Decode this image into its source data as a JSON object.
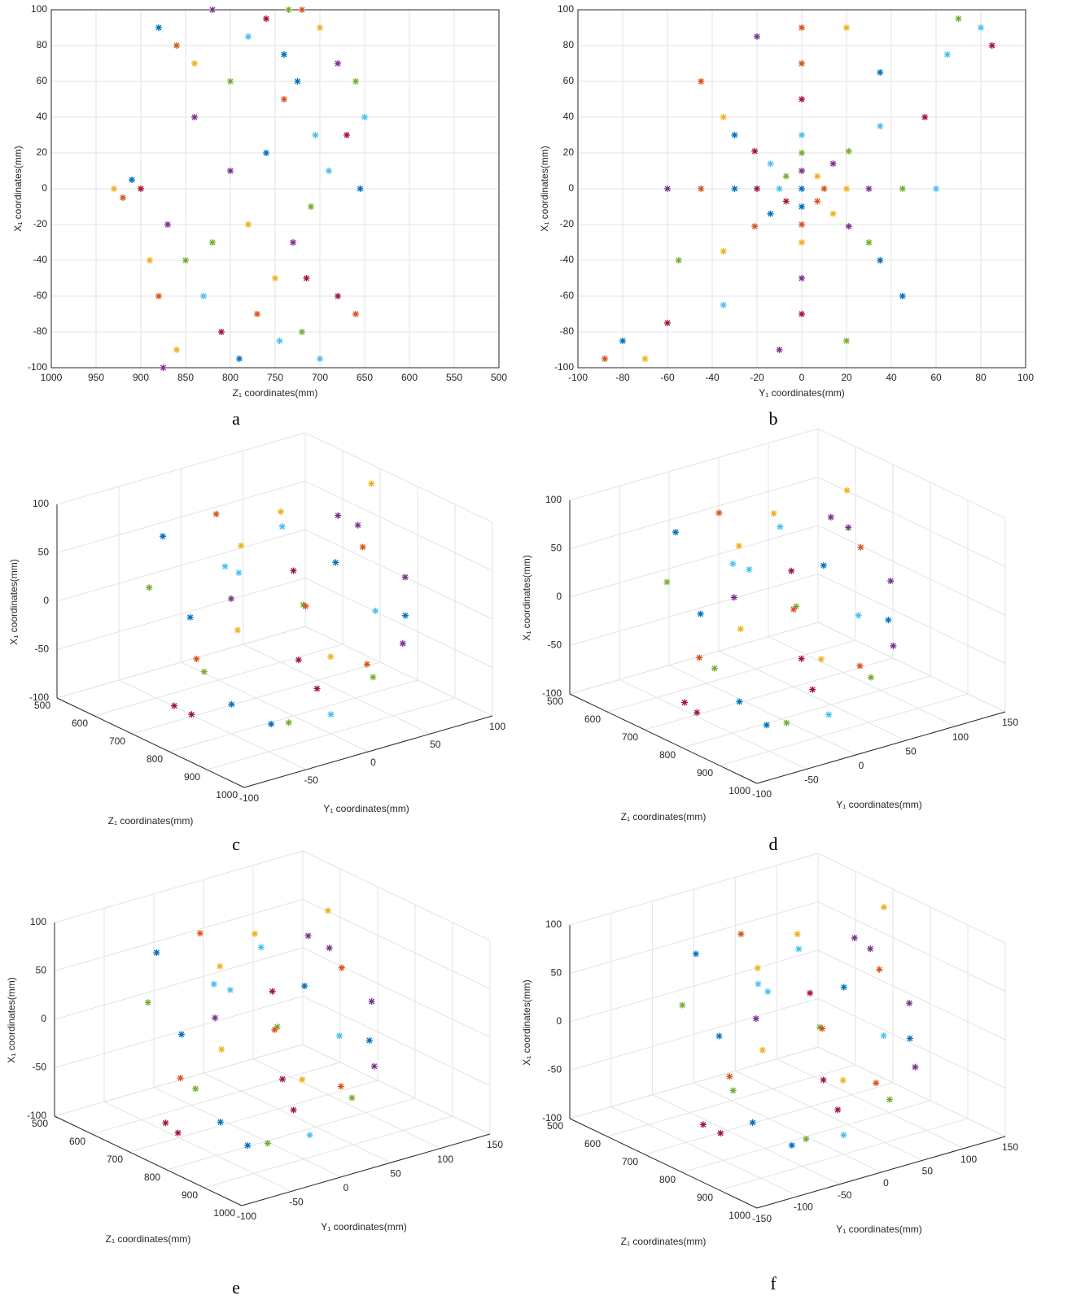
{
  "chart_data": [
    {
      "type": "scatter",
      "caption": "a",
      "xlabel": "Z₁ coordinates(mm)",
      "ylabel": "X₁ coordinates(mm)",
      "xlim": [
        1000,
        500
      ],
      "xticks": [
        1000,
        950,
        900,
        850,
        800,
        750,
        700,
        650,
        600,
        550,
        500
      ],
      "ylim": [
        -100,
        100
      ],
      "yticks": [
        -100,
        -80,
        -60,
        -40,
        -20,
        0,
        20,
        40,
        60,
        80,
        100
      ],
      "grid": true,
      "marker": "*",
      "colors": [
        "#0072BD",
        "#D95319",
        "#EDB120",
        "#7E2F8E",
        "#77AC30",
        "#4DBEEE",
        "#A2142F"
      ],
      "x": [
        880,
        860,
        840,
        820,
        800,
        780,
        760,
        740,
        720,
        700,
        680,
        660,
        650,
        900,
        910,
        920,
        930,
        870,
        850,
        830,
        810,
        790,
        770,
        750,
        730,
        710,
        690,
        670,
        655,
        880,
        860,
        840,
        720,
        700,
        680,
        760,
        740,
        780,
        800,
        820,
        705,
        715,
        725,
        660,
        890,
        875,
        735,
        745
      ],
      "y": [
        90,
        80,
        70,
        100,
        60,
        85,
        95,
        75,
        100,
        90,
        70,
        60,
        40,
        0,
        5,
        -5,
        0,
        -20,
        -40,
        -60,
        -80,
        -95,
        -70,
        -50,
        -30,
        -10,
        10,
        30,
        0,
        -60,
        -90,
        40,
        -80,
        -95,
        -60,
        20,
        50,
        -20,
        10,
        -30,
        30,
        -50,
        60,
        -70,
        -40,
        -100,
        100,
        -85
      ]
    },
    {
      "type": "scatter",
      "caption": "b",
      "xlabel": "Y₁ coordinates(mm)",
      "ylabel": "X₁ coordinates(mm)",
      "xlim": [
        -100,
        100
      ],
      "xticks": [
        -100,
        -80,
        -60,
        -40,
        -20,
        0,
        20,
        40,
        60,
        80,
        100
      ],
      "ylim": [
        -100,
        100
      ],
      "yticks": [
        -100,
        -80,
        -60,
        -40,
        -20,
        0,
        20,
        40,
        60,
        80,
        100
      ],
      "grid": true,
      "marker": "*",
      "colors": [
        "#0072BD",
        "#D95319",
        "#EDB120",
        "#7E2F8E",
        "#77AC30",
        "#4DBEEE",
        "#A2142F"
      ],
      "x": [
        0,
        10,
        7,
        0,
        -7,
        -10,
        -7,
        0,
        7,
        20,
        14,
        0,
        -14,
        -20,
        -14,
        0,
        14,
        30,
        21,
        0,
        -21,
        -30,
        -21,
        0,
        21,
        45,
        35,
        0,
        -30,
        -45,
        -35,
        0,
        30,
        60,
        55,
        35,
        0,
        -35,
        -60,
        -55,
        -35,
        0,
        35,
        0,
        20,
        -20,
        70,
        80,
        85,
        -80,
        -88,
        -70,
        -10,
        20,
        65,
        -60,
        45,
        -45
      ],
      "y": [
        0,
        0,
        7,
        10,
        7,
        0,
        -7,
        -10,
        -7,
        0,
        14,
        20,
        14,
        0,
        -14,
        -20,
        -14,
        0,
        21,
        30,
        21,
        0,
        -21,
        -30,
        -21,
        0,
        35,
        50,
        30,
        0,
        -35,
        -50,
        -30,
        0,
        40,
        65,
        70,
        40,
        0,
        -40,
        -65,
        -70,
        -40,
        90,
        90,
        85,
        95,
        90,
        80,
        -85,
        -95,
        -95,
        -90,
        -85,
        75,
        -75,
        -60,
        60
      ]
    },
    {
      "type": "scatter3d",
      "caption": "c",
      "xlabel": "Z₁ coordinates(mm)",
      "ylabel": "Y₁ coordinates(mm)",
      "zlabel": "X₁ coordinates(mm)",
      "xlim": [
        500,
        1000
      ],
      "xticks": [
        500,
        600,
        700,
        800,
        900,
        1000
      ],
      "ylim": [
        -100,
        100
      ],
      "yticks": [
        -100,
        -50,
        0,
        50,
        100
      ],
      "zlim": [
        -100,
        100
      ],
      "zticks": [
        -100,
        -50,
        0,
        50,
        100
      ],
      "grid": true,
      "marker": "*",
      "colors": [
        "#0072BD",
        "#D95319",
        "#EDB120",
        "#7E2F8E",
        "#77AC30",
        "#4DBEEE",
        "#A2142F"
      ],
      "x": [
        650,
        660,
        700,
        720,
        680,
        750,
        800,
        780,
        720,
        850,
        700,
        760,
        820,
        880,
        900,
        740,
        800,
        860,
        920,
        900,
        780,
        840,
        700,
        660,
        740,
        880,
        820,
        760,
        690,
        930,
        710,
        800,
        860,
        770,
        830,
        900
      ],
      "y": [
        -60,
        -20,
        20,
        60,
        -80,
        -40,
        0,
        40,
        80,
        -60,
        -20,
        20,
        60,
        -20,
        -80,
        -60,
        30,
        70,
        -40,
        0,
        -90,
        -30,
        40,
        0,
        70,
        40,
        -50,
        -70,
        -50,
        20,
        90,
        90,
        -90,
        0,
        10,
        60
      ],
      "z": [
        80,
        90,
        85,
        70,
        40,
        60,
        50,
        40,
        30,
        20,
        10,
        0,
        -10,
        -20,
        -40,
        -30,
        -50,
        -40,
        -70,
        -80,
        -60,
        -90,
        -20,
        50,
        60,
        -60,
        70,
        -80,
        0,
        -30,
        90,
        10,
        -10,
        90,
        -70,
        0
      ]
    },
    {
      "type": "scatter3d",
      "caption": "d",
      "xlabel": "Z₁ coordinates(mm)",
      "ylabel": "Y₁ coordinates(mm)",
      "zlabel": "X₁ coordinates(mm)",
      "xlim": [
        500,
        1000
      ],
      "xticks": [
        500,
        600,
        700,
        800,
        900,
        1000
      ],
      "ylim": [
        -100,
        150
      ],
      "yticks": [
        -100,
        -50,
        0,
        50,
        100,
        150
      ],
      "zlim": [
        -100,
        100
      ],
      "zticks": [
        -100,
        -50,
        0,
        50,
        100
      ],
      "grid": true,
      "marker": "*",
      "colors": [
        "#0072BD",
        "#D95319",
        "#EDB120",
        "#7E2F8E",
        "#77AC30",
        "#4DBEEE",
        "#A2142F"
      ],
      "x": [
        650,
        660,
        700,
        720,
        680,
        750,
        800,
        780,
        720,
        850,
        700,
        760,
        820,
        880,
        900,
        740,
        800,
        860,
        920,
        900,
        780,
        840,
        700,
        660,
        740,
        880,
        820,
        760,
        690,
        930,
        710,
        800,
        860,
        770,
        830,
        900
      ],
      "y": [
        -50,
        -10,
        30,
        80,
        -70,
        -30,
        10,
        50,
        110,
        -60,
        -10,
        30,
        70,
        -10,
        -80,
        -60,
        40,
        90,
        -40,
        10,
        -90,
        -30,
        50,
        10,
        90,
        60,
        -40,
        -70,
        -40,
        30,
        100,
        110,
        -90,
        10,
        20,
        70
      ],
      "z": [
        80,
        90,
        85,
        70,
        40,
        60,
        50,
        40,
        30,
        20,
        10,
        0,
        -10,
        -20,
        -40,
        -30,
        -50,
        -40,
        -70,
        -80,
        -60,
        -90,
        -20,
        50,
        60,
        -60,
        70,
        -80,
        0,
        -30,
        90,
        10,
        -10,
        90,
        -70,
        0
      ]
    },
    {
      "type": "scatter3d",
      "caption": "e",
      "xlabel": "Z₁ coordinates(mm)",
      "ylabel": "Y₁ coordinates(mm)",
      "zlabel": "X₁ coordinates(mm)",
      "xlim": [
        500,
        1000
      ],
      "xticks": [
        500,
        600,
        700,
        800,
        900,
        1000
      ],
      "ylim": [
        -100,
        150
      ],
      "yticks": [
        -100,
        -50,
        0,
        50,
        100,
        150
      ],
      "zlim": [
        -100,
        100
      ],
      "zticks": [
        -100,
        -50,
        0,
        50,
        100
      ],
      "grid": true,
      "marker": "*",
      "colors": [
        "#0072BD",
        "#D95319",
        "#EDB120",
        "#7E2F8E",
        "#77AC30",
        "#4DBEEE",
        "#A2142F"
      ],
      "x": [
        640,
        650,
        690,
        700,
        670,
        740,
        790,
        770,
        710,
        840,
        690,
        750,
        810,
        870,
        890,
        730,
        790,
        850,
        910,
        890,
        770,
        830,
        690,
        650,
        730,
        870,
        810,
        750,
        680,
        920,
        700,
        790,
        850,
        760,
        820,
        890
      ],
      "y": [
        -50,
        -10,
        30,
        80,
        -70,
        -30,
        10,
        50,
        110,
        -60,
        -10,
        30,
        70,
        -10,
        -80,
        -60,
        40,
        90,
        -40,
        10,
        -90,
        -30,
        50,
        10,
        90,
        60,
        -40,
        -70,
        -40,
        30,
        100,
        110,
        -90,
        10,
        20,
        70
      ],
      "z": [
        80,
        90,
        85,
        70,
        40,
        60,
        50,
        40,
        30,
        20,
        10,
        0,
        -10,
        -20,
        -40,
        -30,
        -50,
        -40,
        -70,
        -80,
        -60,
        -90,
        -20,
        50,
        60,
        -60,
        70,
        -80,
        0,
        -30,
        90,
        10,
        -10,
        90,
        -70,
        0
      ]
    },
    {
      "type": "scatter3d",
      "caption": "f",
      "xlabel": "Z₁ coordinates(mm)",
      "ylabel": "Y₁ coordinates(mm)",
      "zlabel": "X₁ coordinates(mm)",
      "xlim": [
        500,
        1000
      ],
      "xticks": [
        500,
        600,
        700,
        800,
        900,
        1000
      ],
      "ylim": [
        -150,
        150
      ],
      "yticks": [
        -150,
        -100,
        -50,
        0,
        50,
        100,
        150
      ],
      "zlim": [
        -100,
        100
      ],
      "zticks": [
        -100,
        -50,
        0,
        50,
        100
      ],
      "grid": true,
      "marker": "*",
      "colors": [
        "#0072BD",
        "#D95319",
        "#EDB120",
        "#7E2F8E",
        "#77AC30",
        "#4DBEEE",
        "#A2142F"
      ],
      "x": [
        660,
        670,
        710,
        730,
        690,
        760,
        810,
        790,
        730,
        860,
        710,
        770,
        830,
        890,
        900,
        750,
        810,
        870,
        910,
        900,
        790,
        850,
        710,
        670,
        750,
        890,
        830,
        770,
        700,
        920,
        720,
        810,
        870,
        780,
        840,
        900
      ],
      "y": [
        -70,
        -20,
        30,
        90,
        -100,
        -40,
        0,
        50,
        120,
        -80,
        -20,
        30,
        80,
        -20,
        -110,
        -70,
        40,
        100,
        -50,
        0,
        -120,
        -40,
        60,
        0,
        100,
        60,
        -60,
        -90,
        -60,
        30,
        130,
        120,
        -120,
        0,
        20,
        80
      ],
      "z": [
        80,
        90,
        85,
        70,
        40,
        60,
        50,
        40,
        30,
        20,
        10,
        0,
        -10,
        -20,
        -40,
        -30,
        -50,
        -40,
        -70,
        -80,
        -60,
        -90,
        -20,
        50,
        60,
        -60,
        70,
        -80,
        0,
        -30,
        90,
        10,
        -10,
        90,
        -70,
        0
      ]
    }
  ]
}
